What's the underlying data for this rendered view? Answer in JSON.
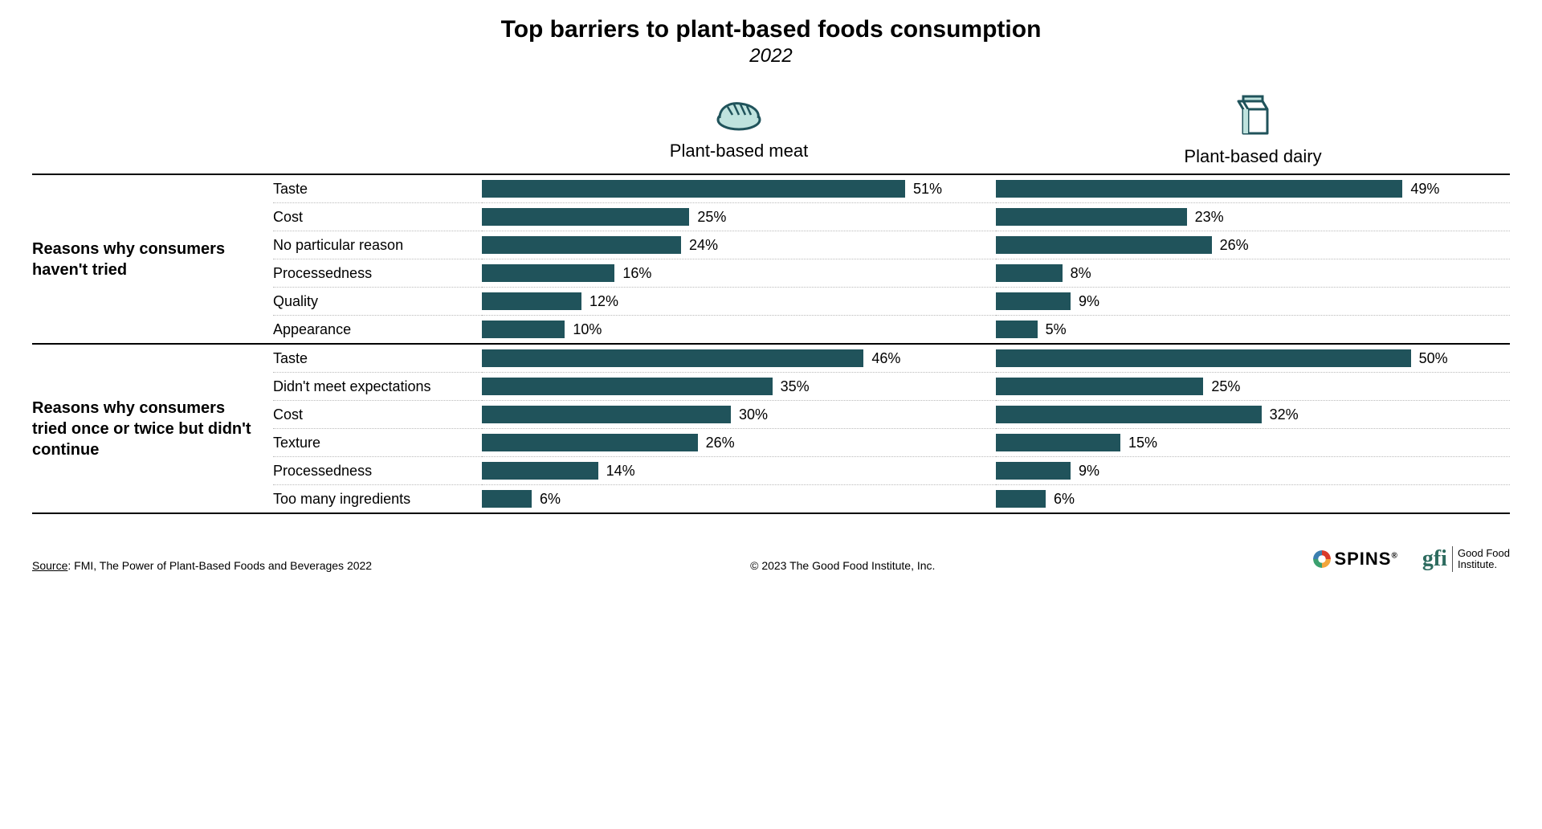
{
  "title": "Top barriers to plant-based foods consumption",
  "subtitle": "2022",
  "columns": [
    {
      "label": "Plant-based meat",
      "icon": "meat"
    },
    {
      "label": "Plant-based dairy",
      "icon": "dairy"
    }
  ],
  "bar_color": "#20535b",
  "bar_scale_max": 60,
  "background_color": "#ffffff",
  "text_color": "#000000",
  "grid_dotted_color": "#bbbbbb",
  "rule_color": "#000000",
  "sections": [
    {
      "heading": "Reasons why consumers haven't tried",
      "rows": [
        {
          "label": "Taste",
          "values": [
            51,
            49
          ]
        },
        {
          "label": "Cost",
          "values": [
            25,
            23
          ]
        },
        {
          "label": "No particular reason",
          "values": [
            24,
            26
          ]
        },
        {
          "label": "Processedness",
          "values": [
            16,
            8
          ]
        },
        {
          "label": "Quality",
          "values": [
            12,
            9
          ]
        },
        {
          "label": "Appearance",
          "values": [
            10,
            5
          ]
        }
      ]
    },
    {
      "heading": "Reasons why consumers tried once or twice but didn't continue",
      "rows": [
        {
          "label": "Taste",
          "values": [
            46,
            50
          ]
        },
        {
          "label": "Didn't meet expectations",
          "values": [
            35,
            25
          ]
        },
        {
          "label": "Cost",
          "values": [
            30,
            32
          ]
        },
        {
          "label": "Texture",
          "values": [
            26,
            15
          ]
        },
        {
          "label": "Processedness",
          "values": [
            14,
            9
          ]
        },
        {
          "label": "Too many ingredients",
          "values": [
            6,
            6
          ]
        }
      ]
    }
  ],
  "footer": {
    "source_label": "Source",
    "source_text": ": FMI, The Power of Plant-Based Foods and Beverages 2022",
    "copyright": "© 2023 The Good Food Institute, Inc.",
    "logo_spins": "SPINS",
    "logo_gfi_mark": "gfi",
    "logo_gfi_line1": "Good Food",
    "logo_gfi_line2": "Institute."
  },
  "icon_colors": {
    "stroke": "#20535b",
    "fill": "#bfe3de"
  }
}
